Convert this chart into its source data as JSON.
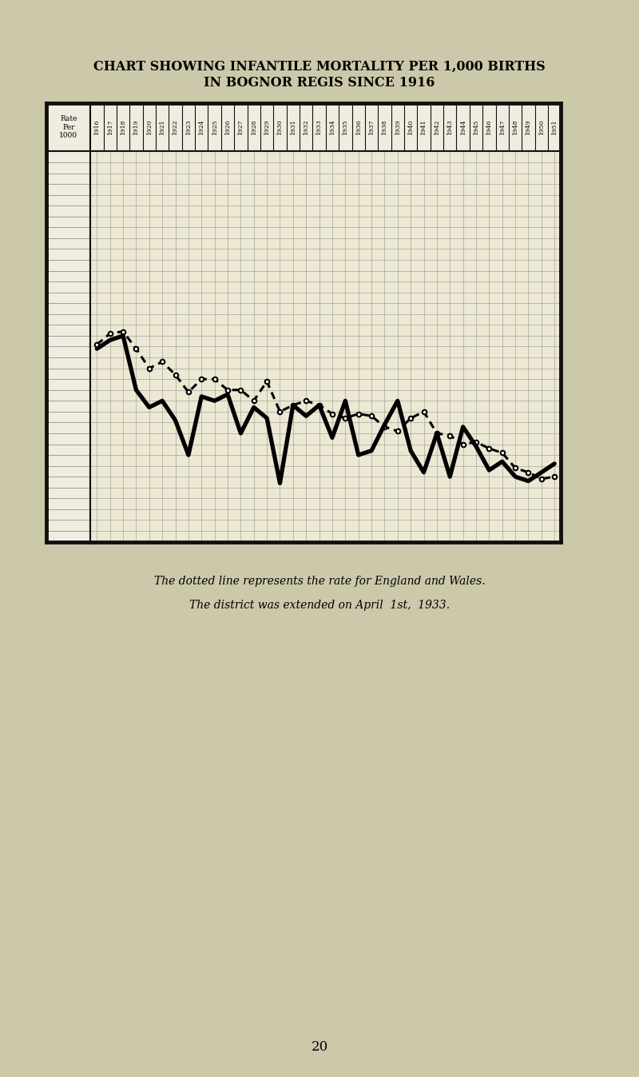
{
  "title_line1": "CHART SHOWING INFANTILE MORTALITY PER 1,000 BIRTHS",
  "title_line2": "IN BOGNOR REGIS SINCE 1916",
  "caption1": "The dotted line represents the rate for England and Wales.",
  "caption2": "The district was extended on April  1st,  1933.",
  "page_number": "20",
  "years": [
    1916,
    1917,
    1918,
    1919,
    1920,
    1921,
    1922,
    1923,
    1924,
    1925,
    1926,
    1927,
    1928,
    1929,
    1930,
    1931,
    1932,
    1933,
    1934,
    1935,
    1936,
    1937,
    1938,
    1939,
    1940,
    1941,
    1942,
    1943,
    1944,
    1945,
    1946,
    1947,
    1948,
    1949,
    1950,
    1951
  ],
  "bognor": [
    89,
    93,
    95,
    70,
    62,
    65,
    56,
    40,
    67,
    65,
    68,
    50,
    62,
    57,
    27,
    63,
    58,
    63,
    48,
    65,
    40,
    42,
    54,
    65,
    42,
    32,
    50,
    30,
    53,
    44,
    33,
    37,
    30,
    28,
    32,
    36
  ],
  "england_wales": [
    91,
    96,
    97,
    89,
    80,
    83,
    77,
    69,
    75,
    75,
    70,
    70,
    65,
    74,
    60,
    63,
    65,
    63,
    59,
    57,
    59,
    58,
    53,
    51,
    57,
    60,
    50,
    49,
    45,
    46,
    43,
    41,
    34,
    32,
    29,
    30
  ],
  "ytick_values": [
    0,
    5,
    10,
    15,
    20,
    25,
    30,
    35,
    40,
    45,
    50,
    55,
    60,
    65,
    70,
    75,
    80,
    85,
    90,
    95,
    100,
    105,
    110,
    115,
    120,
    125,
    130,
    135,
    140,
    145,
    150,
    155,
    160,
    165,
    170,
    175
  ],
  "ymax": 180,
  "bg_color": "#ccc8aa",
  "chart_bg": "#ece8d4",
  "grid_color": "#888880",
  "border_color": "#111111",
  "line_color": "#000000",
  "label_bg": "#f0ece0"
}
